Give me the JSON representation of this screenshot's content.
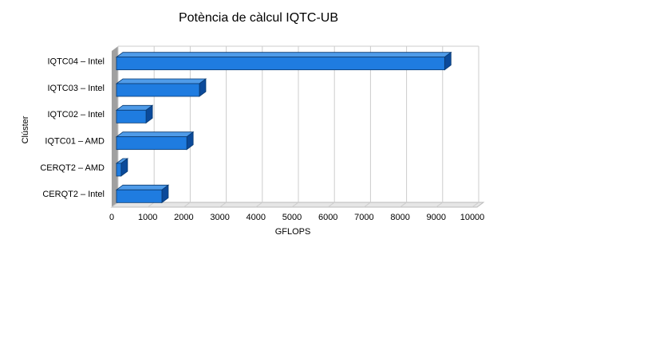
{
  "chart_data": {
    "type": "bar",
    "orientation": "horizontal",
    "title": "Potència de càlcul IQTC-UB",
    "x_label": "GFLOPS",
    "y_label": "Clúster",
    "categories": [
      "IQTC04 – Intel",
      "IQTC03 – Intel",
      "IQTC02 – Intel",
      "IQTC01 – AMD",
      "CERQT2 – AMD",
      "CERQT2 – Intel"
    ],
    "values": [
      9100,
      2300,
      820,
      1950,
      130,
      1260
    ],
    "color": "#1f7ce0",
    "xlim": [
      0,
      10000
    ],
    "xticks": [
      0,
      1000,
      2000,
      3000,
      4000,
      5000,
      6000,
      7000,
      8000,
      9000,
      10000
    ],
    "grid": true
  }
}
